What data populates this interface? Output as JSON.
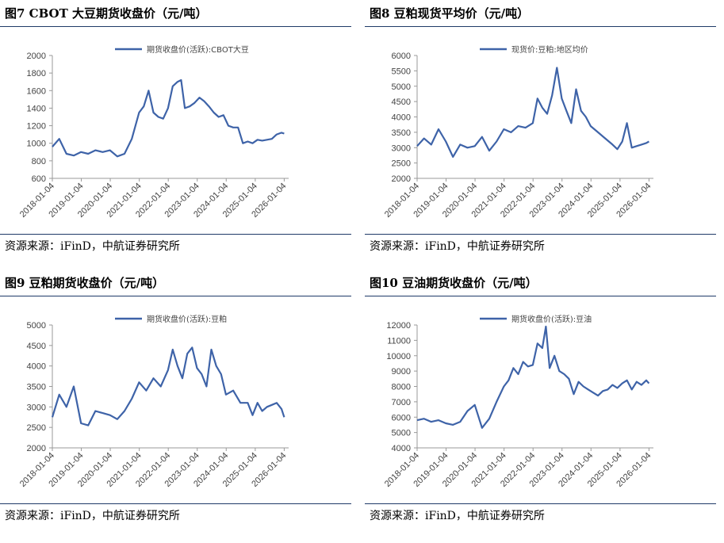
{
  "charts": [
    {
      "title": "图7  CBOT 大豆期货收盘价（元/吨）",
      "source": "资源来源：iFinD，中航证券研究所",
      "chart_data": {
        "type": "line",
        "series": [
          {
            "name": "期货收盘价(活跃):CBOT大豆",
            "x": [
              "2018-01-04",
              "2018-04-01",
              "2018-07-01",
              "2018-10-01",
              "2019-01-01",
              "2019-04-01",
              "2019-07-01",
              "2019-10-01",
              "2020-01-01",
              "2020-04-01",
              "2020-07-01",
              "2020-10-01",
              "2021-01-01",
              "2021-03-01",
              "2021-05-01",
              "2021-07-01",
              "2021-09-01",
              "2021-11-01",
              "2022-01-01",
              "2022-03-01",
              "2022-05-01",
              "2022-06-15",
              "2022-08-01",
              "2022-10-01",
              "2022-12-01",
              "2023-02-01",
              "2023-04-01",
              "2023-06-01",
              "2023-08-01",
              "2023-10-01",
              "2023-12-01",
              "2024-02-01",
              "2024-04-01",
              "2024-06-01",
              "2024-08-01",
              "2024-10-01",
              "2024-12-01",
              "2025-02-01",
              "2025-04-01",
              "2025-06-01",
              "2025-08-01",
              "2025-10-01",
              "2025-12-01",
              "2026-01-04"
            ],
            "y": [
              960,
              1050,
              880,
              860,
              900,
              880,
              920,
              900,
              920,
              850,
              880,
              1050,
              1350,
              1420,
              1600,
              1350,
              1300,
              1280,
              1400,
              1650,
              1700,
              1720,
              1400,
              1420,
              1460,
              1520,
              1480,
              1420,
              1350,
              1300,
              1320,
              1200,
              1180,
              1180,
              1000,
              1020,
              1000,
              1040,
              1030,
              1040,
              1050,
              1100,
              1120,
              1110
            ]
          }
        ],
        "ylim": [
          600,
          2000
        ],
        "yticks": [
          600,
          800,
          1000,
          1200,
          1400,
          1600,
          1800,
          2000
        ],
        "xticks": [
          "2018-01-04",
          "2019-01-04",
          "2020-01-04",
          "2021-01-04",
          "2022-01-04",
          "2023-01-04",
          "2024-01-04",
          "2025-01-04",
          "2026-01-04"
        ],
        "xrange": [
          "2018-01-04",
          "2026-03-01"
        ],
        "legend": "top-center",
        "color": "#3e63a8"
      }
    },
    {
      "title": "图8  豆粕现货平均价（元/吨）",
      "source": "资源来源：iFinD，中航证券研究所",
      "chart_data": {
        "type": "line",
        "series": [
          {
            "name": "现货价:豆粕:地区均价",
            "x": [
              "2018-01-04",
              "2018-04-01",
              "2018-07-01",
              "2018-10-01",
              "2019-01-01",
              "2019-04-01",
              "2019-07-01",
              "2019-10-01",
              "2020-01-01",
              "2020-04-01",
              "2020-07-01",
              "2020-10-01",
              "2021-01-01",
              "2021-04-01",
              "2021-07-01",
              "2021-10-01",
              "2022-01-01",
              "2022-03-01",
              "2022-05-01",
              "2022-07-01",
              "2022-09-01",
              "2022-11-01",
              "2023-01-01",
              "2023-03-01",
              "2023-05-01",
              "2023-07-01",
              "2023-09-01",
              "2023-11-01",
              "2024-01-01",
              "2024-04-01",
              "2024-07-01",
              "2024-10-01",
              "2024-12-01",
              "2025-02-01",
              "2025-04-01",
              "2025-06-01",
              "2025-08-01",
              "2025-10-01",
              "2025-12-01",
              "2026-01-04"
            ],
            "y": [
              3050,
              3300,
              3100,
              3600,
              3200,
              2700,
              3100,
              3000,
              3050,
              3350,
              2900,
              3200,
              3600,
              3500,
              3700,
              3650,
              3800,
              4600,
              4300,
              4100,
              4700,
              5600,
              4600,
              4200,
              3800,
              4900,
              4200,
              4000,
              3700,
              3500,
              3300,
              3100,
              2950,
              3200,
              3800,
              3000,
              3050,
              3100,
              3150,
              3200
            ]
          }
        ],
        "ylim": [
          2000,
          6000
        ],
        "yticks": [
          2000,
          2500,
          3000,
          3500,
          4000,
          4500,
          5000,
          5500,
          6000
        ],
        "xticks": [
          "2018-01-04",
          "2019-01-04",
          "2020-01-04",
          "2021-01-04",
          "2022-01-04",
          "2023-01-04",
          "2024-01-04",
          "2025-01-04",
          "2026-01-04"
        ],
        "xrange": [
          "2018-01-04",
          "2026-03-01"
        ],
        "legend": "top-center",
        "color": "#3e63a8"
      }
    },
    {
      "title": "图9  豆粕期货收盘价（元/吨）",
      "source": "资源来源：iFinD，中航证券研究所",
      "chart_data": {
        "type": "line",
        "series": [
          {
            "name": "期货收盘价(活跃):豆粕",
            "x": [
              "2018-01-04",
              "2018-04-01",
              "2018-07-01",
              "2018-10-01",
              "2019-01-01",
              "2019-04-01",
              "2019-07-01",
              "2019-10-01",
              "2020-01-01",
              "2020-04-01",
              "2020-07-01",
              "2020-10-01",
              "2021-01-01",
              "2021-04-01",
              "2021-07-01",
              "2021-10-01",
              "2022-01-01",
              "2022-03-01",
              "2022-05-01",
              "2022-07-01",
              "2022-09-01",
              "2022-11-01",
              "2023-01-01",
              "2023-03-01",
              "2023-05-01",
              "2023-07-01",
              "2023-09-01",
              "2023-11-01",
              "2024-01-01",
              "2024-04-01",
              "2024-07-01",
              "2024-10-01",
              "2024-12-01",
              "2025-02-01",
              "2025-04-01",
              "2025-06-01",
              "2025-08-01",
              "2025-10-01",
              "2025-12-01",
              "2026-01-04"
            ],
            "y": [
              2750,
              3300,
              3000,
              3500,
              2600,
              2550,
              2900,
              2850,
              2800,
              2700,
              2900,
              3200,
              3600,
              3400,
              3700,
              3500,
              3900,
              4400,
              4000,
              3700,
              4300,
              4450,
              3950,
              3800,
              3500,
              4400,
              4000,
              3800,
              3300,
              3400,
              3100,
              3100,
              2800,
              3100,
              2900,
              3000,
              3050,
              3100,
              2950,
              2750
            ]
          }
        ],
        "ylim": [
          2000,
          5000
        ],
        "yticks": [
          2000,
          2500,
          3000,
          3500,
          4000,
          4500,
          5000
        ],
        "xticks": [
          "2018-01-04",
          "2019-01-04",
          "2020-01-04",
          "2021-01-04",
          "2022-01-04",
          "2023-01-04",
          "2024-01-04",
          "2025-01-04",
          "2026-01-04"
        ],
        "xrange": [
          "2018-01-04",
          "2026-03-01"
        ],
        "legend": "top-center",
        "color": "#3e63a8"
      }
    },
    {
      "title": "图10  豆油期货收盘价（元/吨）",
      "source": "资源来源：iFinD，中航证券研究所",
      "chart_data": {
        "type": "line",
        "series": [
          {
            "name": "期货收盘价(活跃):豆油",
            "x": [
              "2018-01-04",
              "2018-04-01",
              "2018-07-01",
              "2018-10-01",
              "2019-01-01",
              "2019-04-01",
              "2019-07-01",
              "2019-10-01",
              "2020-01-01",
              "2020-04-01",
              "2020-07-01",
              "2020-10-01",
              "2021-01-01",
              "2021-03-01",
              "2021-05-01",
              "2021-07-01",
              "2021-09-01",
              "2021-11-01",
              "2022-01-01",
              "2022-03-01",
              "2022-05-01",
              "2022-06-15",
              "2022-08-01",
              "2022-10-01",
              "2022-12-01",
              "2023-02-01",
              "2023-04-01",
              "2023-06-01",
              "2023-08-01",
              "2023-10-01",
              "2023-12-01",
              "2024-02-01",
              "2024-04-01",
              "2024-06-01",
              "2024-08-01",
              "2024-10-01",
              "2024-12-01",
              "2025-02-01",
              "2025-04-01",
              "2025-06-01",
              "2025-08-01",
              "2025-10-01",
              "2025-12-01",
              "2026-01-04"
            ],
            "y": [
              5800,
              5900,
              5700,
              5800,
              5600,
              5500,
              5700,
              6400,
              6800,
              5300,
              5900,
              7000,
              8000,
              8400,
              9200,
              8800,
              9600,
              9300,
              9400,
              10800,
              10500,
              11900,
              9200,
              10000,
              9000,
              8800,
              8500,
              7500,
              8300,
              8000,
              7800,
              7600,
              7400,
              7700,
              7800,
              8100,
              7900,
              8200,
              8400,
              7800,
              8300,
              8100,
              8400,
              8200
            ]
          }
        ],
        "ylim": [
          4000,
          12000
        ],
        "yticks": [
          4000,
          5000,
          6000,
          7000,
          8000,
          9000,
          10000,
          11000,
          12000
        ],
        "xticks": [
          "2018-01-04",
          "2019-01-04",
          "2020-01-04",
          "2021-01-04",
          "2022-01-04",
          "2023-01-04",
          "2024-01-04",
          "2025-01-04",
          "2026-01-04"
        ],
        "xrange": [
          "2018-01-04",
          "2026-03-01"
        ],
        "legend": "top-center",
        "color": "#3e63a8"
      }
    }
  ]
}
